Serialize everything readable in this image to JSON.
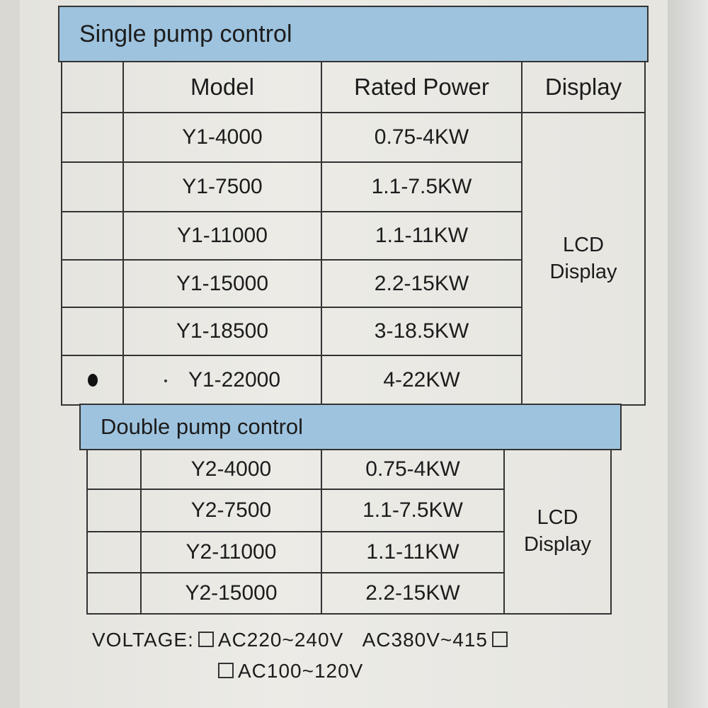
{
  "single": {
    "title": "Single pump control",
    "headers": [
      "",
      "Model",
      "Rated Power",
      "Display"
    ],
    "rows": [
      {
        "model": "Y1-4000",
        "power": "0.75-4KW"
      },
      {
        "model": "Y1-7500",
        "power": "1.1-7.5KW"
      },
      {
        "model": "Y1-11000",
        "power": "1.1-11KW"
      },
      {
        "model": "Y1-15000",
        "power": "2.2-15KW"
      },
      {
        "model": "Y1-18500",
        "power": "3-18.5KW"
      },
      {
        "model": "Y1-22000",
        "power": "4-22KW"
      }
    ],
    "display": [
      "LCD",
      "Display"
    ]
  },
  "double": {
    "title": "Double pump control",
    "rows": [
      {
        "model": "Y2-4000",
        "power": "0.75-4KW"
      },
      {
        "model": "Y2-7500",
        "power": "1.1-7.5KW"
      },
      {
        "model": "Y2-11000",
        "power": "1.1-11KW"
      },
      {
        "model": "Y2-15000",
        "power": "2.2-15KW"
      }
    ],
    "display": [
      "LCD",
      "Display"
    ]
  },
  "voltage": {
    "label": "VOLTAGE:",
    "options": [
      "AC220~240V",
      "AC380V~415",
      "AC100~120V"
    ]
  },
  "colors": {
    "header_band": "#9ec3de",
    "paper": "#e8e7e2"
  }
}
